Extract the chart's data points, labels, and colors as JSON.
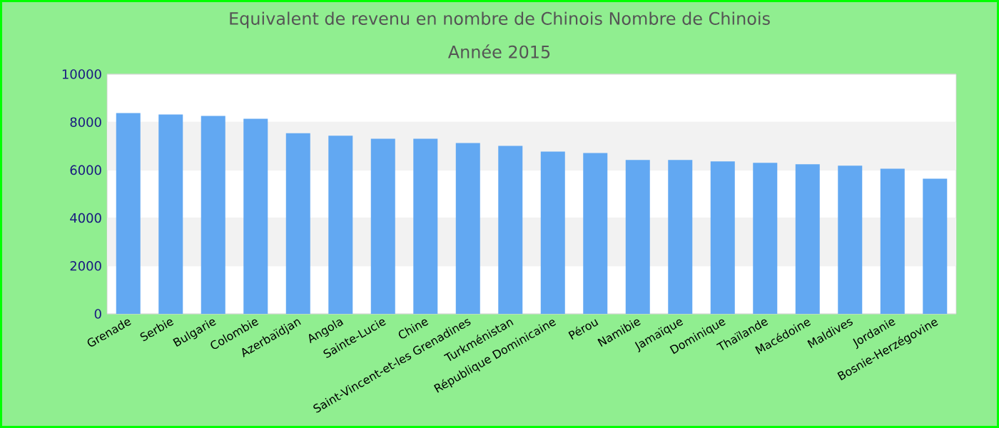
{
  "chart_data": {
    "type": "bar",
    "title": "Equivalent de revenu en nombre de Chinois  Nombre de Chinois",
    "subtitle": "Année 2015",
    "categories": [
      "Grenade",
      "Serbie",
      "Bulgarie",
      "Colombie",
      "Azerbaïdjan",
      "Angola",
      "Sainte-Lucie",
      "Chine",
      "Saint-Vincent-et-les Grenadines",
      "Turkménistan",
      "République Dominicaine",
      "Pérou",
      "Namibie",
      "Jamaïque",
      "Dominique",
      "Thaïlande",
      "Macédoine",
      "Maldives",
      "Jordanie",
      "Bosnie-Herzégovine"
    ],
    "values": [
      8380,
      8320,
      8260,
      8140,
      7540,
      7430,
      7310,
      7310,
      7130,
      7010,
      6770,
      6710,
      6420,
      6420,
      6360,
      6300,
      6240,
      6180,
      6060,
      5640
    ],
    "color": "#62a8f2",
    "ylim": [
      0,
      10000
    ],
    "yticks": [
      0,
      2000,
      4000,
      6000,
      8000,
      10000
    ],
    "grid": "y"
  }
}
